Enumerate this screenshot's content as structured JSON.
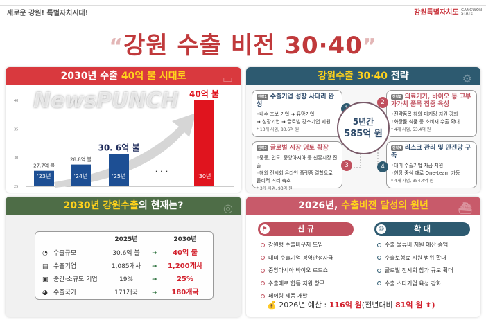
{
  "header": {
    "slogan": "새로운 강원! 특별자치시대!",
    "logo_text": "강원특별자치도",
    "logo_sub": "GANGWON STATE",
    "title": "강원 수출 비전 30·40"
  },
  "panel_export": {
    "title_pre": "2030년 수출 ",
    "title_hl": "40억 불 시대로",
    "accent": "#d9393e"
  },
  "chart_data": {
    "type": "bar",
    "categories": [
      "'23년",
      "'24년",
      "'25년",
      "'30년"
    ],
    "values": [
      27.7,
      28.8,
      30.6,
      40
    ],
    "data_labels": [
      "27.7억 불",
      "28.8억 불",
      "30. 6억 불",
      "40억 불"
    ],
    "ylim": [
      25,
      40
    ],
    "yticks": [
      25,
      30,
      35,
      40
    ],
    "gap_marker": "· · ·",
    "colors": [
      "#1d4f94",
      "#1d4f94",
      "#1d4f94",
      "#e0141e"
    ],
    "grid": false
  },
  "panel_strategy": {
    "title_hl": "강원수출 30·40",
    "title_post": " 전략",
    "center_line1": "5년간",
    "center_line2": "585억 원",
    "items": [
      {
        "num": "1",
        "tag": "전략1",
        "title": "수출기업 성장 사다리 완성",
        "lines": [
          "◦내수·초보 기업 ➜ 유망기업",
          "➜ 성장기업 ➜ 글로벌 강소기업 지원"
        ],
        "sub": "* 13개 사업, 83.6억 원"
      },
      {
        "num": "2",
        "tag": "전략2",
        "title": "의료기기, 바이오 등 고부가가치 품목 집중 육성",
        "lines": [
          "◦전략품목 해외 마케팅 지원 강화",
          "◦화장품·식품 등 소비재 수출 확대"
        ],
        "sub": "* 4개 사업, 53.4억 원"
      },
      {
        "num": "3",
        "tag": "전략3",
        "title": "글로벌 시장 영토 확장",
        "lines": [
          "◦중동, 인도, 중앙아시아 등 신흥시장 진출",
          "◦해외 전시회 온라인 플랫폼 결합으로 물리적 거리 축소"
        ],
        "sub": "* 3개 사업, 93억 원"
      },
      {
        "num": "4",
        "tag": "전략4",
        "title": "리스크 관리 및 안전망 구축",
        "lines": [
          "◦대미 수출기업 자금 지원",
          "◦현장 중심 애로 One-team 가동"
        ],
        "sub": "* 4개 사업, 354.4억 원"
      }
    ]
  },
  "panel_status": {
    "title_hl": "2030년 강원수출",
    "title_post": "의 현재는?",
    "col1": "2025년",
    "col2": "2030년",
    "arrow": "➜",
    "rows": [
      {
        "icon": "pie-chart-icon",
        "label": "수출규모",
        "v2025": "30.6억 불",
        "v2030": "40억 불"
      },
      {
        "icon": "building-icon",
        "label": "수출기업",
        "v2025": "1,085개사",
        "v2030": "1,200개사"
      },
      {
        "icon": "factory-icon",
        "label": "중간·소규모 기업",
        "v2025": "19%",
        "v2030": "25%"
      },
      {
        "icon": "globe-icon",
        "label": "수출국가",
        "v2025": "171개국",
        "v2030": "180개국"
      }
    ]
  },
  "panel_2026": {
    "title_pre": "2026년, ",
    "title_hl": "수출비전 달성의 원년",
    "new_label": "신 규",
    "expand_label": "확 대",
    "new_items": [
      "강원형 수출바우처 도입",
      "대미 수출기업 경영안정자금",
      "중앙아시아 바이오 로드쇼",
      "수출애로 합동 지원 창구",
      "페어링 제품 개발"
    ],
    "expand_items": [
      "수출 물류비 지원 예산 증액",
      "수출보험료 지원 범위 확대",
      "글로벌 전시회 참가 규모 확대",
      "수출 스타기업 육성 강화"
    ],
    "budget_pre": "2026년 예산 : ",
    "budget_val": "116억 원",
    "budget_mid": "(전년대비 ",
    "budget_inc": "81억 원",
    "budget_post": " ⬆)"
  },
  "watermark": "NewsPUNCH"
}
